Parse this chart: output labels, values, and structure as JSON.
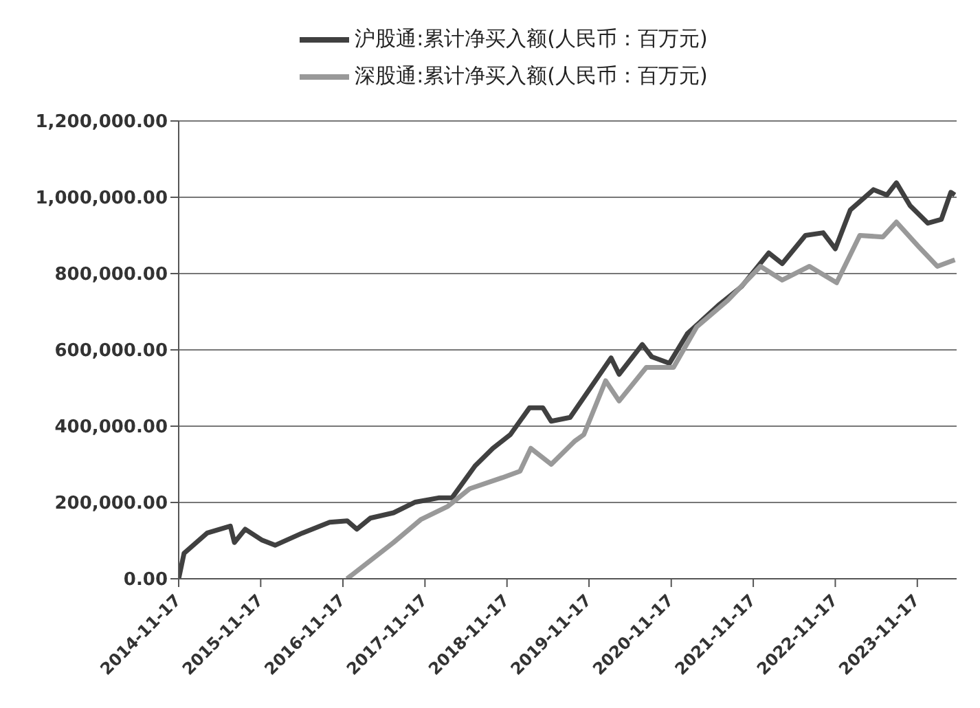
{
  "chart_data": {
    "type": "line",
    "legend": "top",
    "grid": "y",
    "marker": "none",
    "line_style": "solid",
    "xlim": [
      "2014-11-17",
      "2024-05-10"
    ],
    "xticks": [
      "2014-11-17",
      "2015-11-17",
      "2016-11-17",
      "2017-11-17",
      "2018-11-17",
      "2019-11-17",
      "2020-11-17",
      "2021-11-17",
      "2022-11-17",
      "2023-11-17"
    ],
    "ylim": [
      0,
      1200000
    ],
    "yticks": [
      {
        "value": 0,
        "label": "0.00"
      },
      {
        "value": 200000,
        "label": "200,000.00"
      },
      {
        "value": 400000,
        "label": "400,000.00"
      },
      {
        "value": 600000,
        "label": "600,000.00"
      },
      {
        "value": 800000,
        "label": "800,000.00"
      },
      {
        "value": 1000000,
        "label": "1,000,000.00"
      },
      {
        "value": 1200000,
        "label": "1,200,000.00"
      }
    ],
    "series": [
      {
        "name": "沪股通:累计净买入额(人民币：百万元)",
        "color": "#404040",
        "x": [
          "2014-11-17",
          "2014-12-11",
          "2015-03-24",
          "2015-07-05",
          "2015-07-23",
          "2015-09-09",
          "2015-11-21",
          "2016-01-21",
          "2016-05-21",
          "2016-09-19",
          "2016-12-06",
          "2017-01-18",
          "2017-03-19",
          "2017-06-30",
          "2017-10-05",
          "2018-01-16",
          "2018-03-17",
          "2018-06-28",
          "2018-09-15",
          "2018-12-02",
          "2019-02-25",
          "2019-04-26",
          "2019-06-02",
          "2019-08-25",
          "2020-02-23",
          "2020-03-30",
          "2020-07-11",
          "2020-08-22",
          "2020-11-09",
          "2021-01-27",
          "2021-06-21",
          "2021-09-26",
          "2022-01-25",
          "2022-03-26",
          "2022-07-07",
          "2022-09-24",
          "2022-11-17",
          "2023-01-23",
          "2023-05-06",
          "2023-07-05",
          "2023-08-16",
          "2023-10-16",
          "2024-01-03",
          "2024-03-03",
          "2024-04-14",
          "2024-05-02"
        ],
        "values": [
          0,
          67000,
          120000,
          138000,
          95000,
          130000,
          102000,
          88000,
          120000,
          148000,
          152000,
          130000,
          159000,
          173000,
          201000,
          212000,
          212000,
          296000,
          342000,
          378000,
          448000,
          448000,
          413000,
          423000,
          579000,
          536000,
          614000,
          582000,
          565000,
          642000,
          720000,
          766000,
          854000,
          826000,
          900000,
          907000,
          865000,
          967000,
          1020000,
          1006000,
          1038000,
          978000,
          932000,
          942000,
          1013000,
          1006000
        ]
      },
      {
        "name": "深股通:累计净买入额(人民币：百万元)",
        "color": "#999999",
        "x": [
          "2016-12-05",
          "2017-06-30",
          "2017-10-29",
          "2018-02-27",
          "2018-06-04",
          "2018-10-27",
          "2019-01-14",
          "2019-03-03",
          "2019-06-02",
          "2019-09-13",
          "2019-10-25",
          "2020-01-30",
          "2020-03-30",
          "2020-07-29",
          "2020-11-27",
          "2021-03-10",
          "2021-07-27",
          "2021-12-19",
          "2022-03-26",
          "2022-07-25",
          "2022-11-23",
          "2023-03-06",
          "2023-06-17",
          "2023-08-16",
          "2023-11-21",
          "2024-02-14",
          "2024-05-02"
        ],
        "values": [
          0,
          95000,
          155000,
          190000,
          236000,
          265000,
          282000,
          342000,
          300000,
          360000,
          378000,
          519000,
          466000,
          554000,
          554000,
          660000,
          730000,
          819000,
          783000,
          819000,
          776000,
          900000,
          896000,
          935000,
          872000,
          819000,
          836000
        ]
      }
    ]
  }
}
